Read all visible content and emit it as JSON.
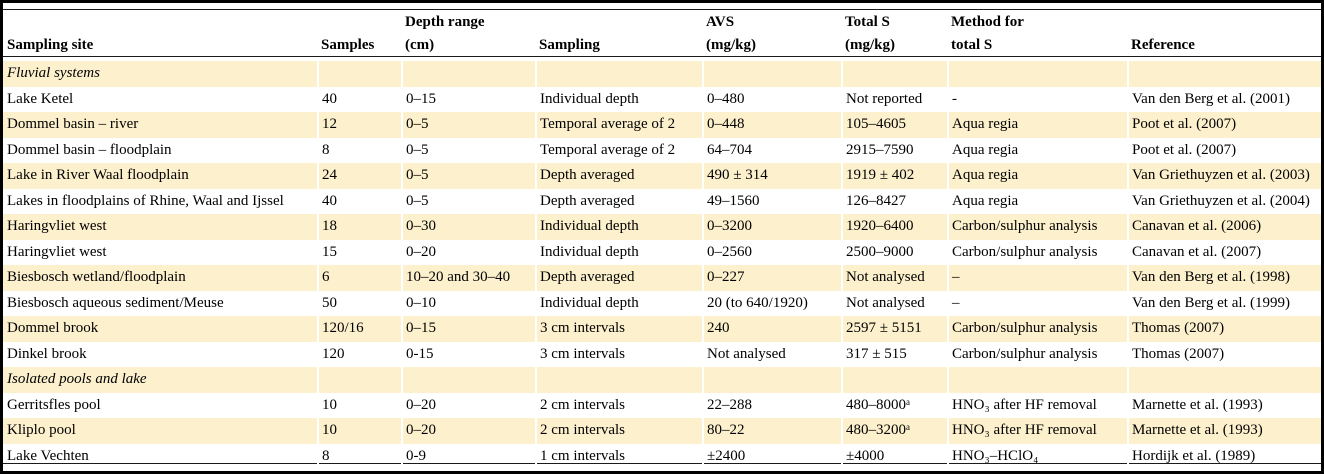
{
  "colors": {
    "stripe": "#fcf0cd",
    "rule": "#1a1a1a",
    "frame": "#000000"
  },
  "table": {
    "columns": [
      {
        "line1": "",
        "line2": "Sampling site"
      },
      {
        "line1": "",
        "line2": "Samples"
      },
      {
        "line1": "Depth range",
        "line2": "(cm)"
      },
      {
        "line1": "",
        "line2": "Sampling"
      },
      {
        "line1": "AVS",
        "line2": "(mg/kg)"
      },
      {
        "line1": "Total S",
        "line2": "(mg/kg)"
      },
      {
        "line1": "Method for",
        "line2": "total S"
      },
      {
        "line1": "",
        "line2": "Reference"
      }
    ],
    "rows": [
      {
        "type": "section",
        "label": "Fluvial systems"
      },
      {
        "type": "data",
        "cells": [
          "Lake Ketel",
          "40",
          "0–15",
          "Individual depth",
          "0–480",
          "Not reported",
          "-",
          "Van den Berg et al. (2001)"
        ]
      },
      {
        "type": "data",
        "cells": [
          "Dommel basin – river",
          "12",
          "0–5",
          "Temporal average of 2",
          "0–448",
          "105–4605",
          "Aqua regia",
          "Poot et al. (2007)"
        ]
      },
      {
        "type": "data",
        "cells": [
          "Dommel basin – floodplain",
          "8",
          "0–5",
          "Temporal average of 2",
          "64–704",
          "2915–7590",
          "Aqua regia",
          "Poot et al. (2007)"
        ]
      },
      {
        "type": "data",
        "cells": [
          "Lake in River Waal floodplain",
          "24",
          "0–5",
          "Depth averaged",
          "490 ± 314",
          "1919 ± 402",
          "Aqua regia",
          "Van Griethuyzen et al. (2003)"
        ]
      },
      {
        "type": "data",
        "cells": [
          "Lakes in floodplains of Rhine, Waal and Ijssel",
          "40",
          "0–5",
          "Depth averaged",
          "49–1560",
          "126–8427",
          "Aqua regia",
          "Van Griethuyzen et al. (2004)"
        ]
      },
      {
        "type": "data",
        "cells": [
          "Haringvliet west",
          "18",
          "0–30",
          "Individual depth",
          "0–3200",
          "1920–6400",
          "Carbon/sulphur analysis",
          "Canavan et al. (2006)"
        ]
      },
      {
        "type": "data",
        "cells": [
          "Haringvliet west",
          "15",
          "0–20",
          "Individual depth",
          "0–2560",
          "2500–9000",
          "Carbon/sulphur analysis",
          "Canavan et al. (2007)"
        ]
      },
      {
        "type": "data",
        "cells": [
          "Biesbosch wetland/floodplain",
          "6",
          "10–20 and 30–40",
          "Depth averaged",
          "0–227",
          "Not analysed",
          "–",
          "Van den Berg et al. (1998)"
        ]
      },
      {
        "type": "data",
        "cells": [
          "Biesbosch aqueous sediment/Meuse",
          "50",
          "0–10",
          "Individual depth",
          "20 (to 640/1920)",
          "Not analysed",
          "–",
          "Van den Berg et al. (1999)"
        ]
      },
      {
        "type": "data",
        "cells": [
          "Dommel brook",
          "120/16",
          "0–15",
          "3 cm intervals",
          "240",
          "2597 ± 5151",
          "Carbon/sulphur analysis",
          "Thomas (2007)"
        ]
      },
      {
        "type": "data",
        "cells": [
          "Dinkel brook",
          "120",
          "0-15",
          "3 cm intervals",
          "Not analysed",
          "317 ± 515",
          "Carbon/sulphur analysis",
          "Thomas (2007)"
        ]
      },
      {
        "type": "section",
        "label": "Isolated pools and lake"
      },
      {
        "type": "data",
        "cells": [
          "Gerritsfles pool",
          "10",
          "0–20",
          "2 cm intervals",
          "22–288",
          "480–8000ᵃ",
          "HNO₃ after HF removal",
          "Marnette et al. (1993)"
        ]
      },
      {
        "type": "data",
        "cells": [
          "Kliplo pool",
          "10",
          "0–20",
          "2 cm intervals",
          "80–22",
          "480–3200ᵃ",
          "HNO₃ after HF removal",
          "Marnette et al. (1993)"
        ]
      },
      {
        "type": "data",
        "cells": [
          "Lake Vechten",
          "8",
          "0-9",
          "1 cm intervals",
          "±2400",
          "±4000",
          "HNO₃–HClO₄",
          "Hordijk et al. (1989)"
        ]
      }
    ]
  }
}
